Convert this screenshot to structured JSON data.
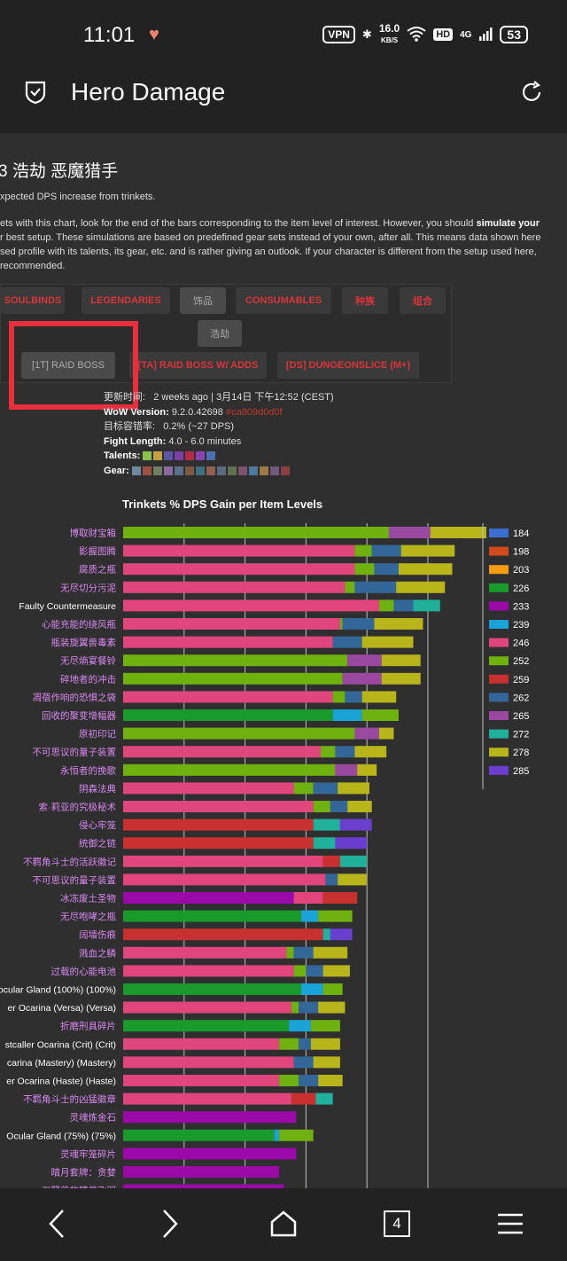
{
  "status": {
    "time": "11:01",
    "vpn": "VPN",
    "speed_value": "16.0",
    "speed_unit": "KB/S",
    "hd": "HD",
    "signal": "4G",
    "battery": "53"
  },
  "appbar": {
    "title": "Hero Damage"
  },
  "page": {
    "title": "3 浩劫 恶魔猎手",
    "subtitle": "xpected DPS increase from trinkets.",
    "para_lines": [
      {
        "pre": "ets with this chart, look for the end of the bars corresponding to the item level of interest. However, you should ",
        "bold": "simulate your"
      },
      {
        "pre": "r best setup. These simulations are based on predefined gear sets instead of your own, after all. This means data shown here",
        "bold": ""
      },
      {
        "pre": "sed profile with its talents, its gear, etc. and is rather giving an outlook. If your character is different from the setup used here,",
        "bold": ""
      },
      {
        "pre": "recommended.",
        "bold": ""
      }
    ]
  },
  "tabs": {
    "row1": [
      "SOULBINDS",
      "LEGENDARIES",
      "饰品",
      "CONSUMABLES",
      "种族",
      "组合"
    ],
    "row2": [
      "浩劫"
    ],
    "row3": [
      "[1T] RAID BOSS",
      "[TA] RAID BOSS W/ ADDS",
      "[DS] DUNGEONSLICE (M+)"
    ]
  },
  "info": {
    "updated_label": "更新时间",
    "updated_value": "2 weeks ago | 3月14日 下午12:52 (CEST)",
    "wow_label": "WoW Version:",
    "wow_value": "9.2.0.42698",
    "wow_hash": "#ca809d0d0f",
    "target_label": "目标容错率:",
    "target_value": "0.2% (~27 DPS)",
    "fight_label": "Fight Length:",
    "fight_value": "4.0 - 6.0 minutes",
    "talents_label": "Talents:",
    "gear_label": "Gear:"
  },
  "colors": {
    "il184": "#3a6fd0",
    "il198": "#d24a1e",
    "il203": "#f39c12",
    "il226": "#1a9a2a",
    "il233": "#9b0aa8",
    "il239": "#1aa3d6",
    "il246": "#e0467c",
    "il252": "#6fb10e",
    "il259": "#c93030",
    "il262": "#336699",
    "il265": "#9a49a0",
    "il272": "#21b19a",
    "il278": "#b8b51a",
    "il285": "#6a3fd0"
  },
  "chart_data": {
    "type": "bar",
    "orientation": "horizontal",
    "stacked": true,
    "title": "Trinkets % DPS Gain per Item Levels",
    "legend_position": "right",
    "legend": [
      "184",
      "198",
      "203",
      "226",
      "233",
      "239",
      "246",
      "252",
      "259",
      "262",
      "265",
      "272",
      "278",
      "285"
    ],
    "categories": [
      {
        "name": "博取财宝箱",
        "color": "#d889f0",
        "segs": [
          [
            252,
            10.9
          ],
          [
            265,
            1.7
          ],
          [
            278,
            2.3
          ]
        ]
      },
      {
        "name": "影握图腾",
        "color": "#d889f0",
        "segs": [
          [
            246,
            9.5
          ],
          [
            252,
            0.7
          ],
          [
            262,
            1.2
          ],
          [
            278,
            2.2
          ]
        ]
      },
      {
        "name": "腐质之瓶",
        "color": "#d889f0",
        "segs": [
          [
            246,
            9.5
          ],
          [
            252,
            0.8
          ],
          [
            262,
            1.0
          ],
          [
            278,
            2.2
          ]
        ]
      },
      {
        "name": "无尽切分污泥",
        "color": "#d889f0",
        "segs": [
          [
            246,
            9.1
          ],
          [
            252,
            0.4
          ],
          [
            262,
            1.7
          ],
          [
            278,
            2.0
          ]
        ]
      },
      {
        "name": "Faulty Countermeasure",
        "color": "#ffffff",
        "segs": [
          [
            246,
            10.5
          ],
          [
            252,
            0.6
          ],
          [
            262,
            0.8
          ],
          [
            272,
            1.1
          ]
        ]
      },
      {
        "name": "心能充能的绕风瓶",
        "color": "#d889f0",
        "segs": [
          [
            246,
            8.9
          ],
          [
            252,
            0.1
          ],
          [
            262,
            1.3
          ],
          [
            278,
            2.0
          ]
        ]
      },
      {
        "name": "瓶装旋翼兽毒素",
        "color": "#d889f0",
        "segs": [
          [
            246,
            8.6
          ],
          [
            262,
            1.2
          ],
          [
            278,
            2.1
          ]
        ]
      },
      {
        "name": "无尽熵宴餐铃",
        "color": "#d889f0",
        "segs": [
          [
            252,
            9.2
          ],
          [
            265,
            1.4
          ],
          [
            278,
            1.6
          ]
        ]
      },
      {
        "name": "碎地者的冲击",
        "color": "#d889f0",
        "segs": [
          [
            252,
            9.0
          ],
          [
            265,
            1.6
          ],
          [
            278,
            1.6
          ]
        ]
      },
      {
        "name": "凋蓓作响的恐惧之袋",
        "color": "#d889f0",
        "segs": [
          [
            246,
            8.6
          ],
          [
            252,
            0.5
          ],
          [
            262,
            0.7
          ],
          [
            278,
            1.4
          ]
        ]
      },
      {
        "name": "回收的聚变增幅器",
        "color": "#d889f0",
        "segs": [
          [
            226,
            8.6
          ],
          [
            239,
            1.2
          ],
          [
            252,
            1.5
          ]
        ]
      },
      {
        "name": "原初印记",
        "color": "#d889f0",
        "segs": [
          [
            252,
            9.5
          ],
          [
            265,
            1.0
          ],
          [
            278,
            0.6
          ]
        ]
      },
      {
        "name": "不可思议的量子装置",
        "color": "#d889f0",
        "segs": [
          [
            246,
            8.1
          ],
          [
            252,
            0.6
          ],
          [
            262,
            0.8
          ],
          [
            278,
            1.3
          ]
        ]
      },
      {
        "name": "永恒者的挽歌",
        "color": "#d889f0",
        "segs": [
          [
            252,
            8.7
          ],
          [
            265,
            0.9
          ],
          [
            278,
            0.8
          ]
        ]
      },
      {
        "name": "阴森法典",
        "color": "#d889f0",
        "segs": [
          [
            246,
            7.0
          ],
          [
            252,
            0.8
          ],
          [
            262,
            1.0
          ],
          [
            278,
            1.3
          ]
        ]
      },
      {
        "name": "索·莉亚的究极秘术",
        "color": "#d889f0",
        "segs": [
          [
            246,
            7.8
          ],
          [
            252,
            0.7
          ],
          [
            262,
            0.7
          ],
          [
            278,
            1.0
          ]
        ]
      },
      {
        "name": "侵心牢笼",
        "color": "#d889f0",
        "segs": [
          [
            259,
            7.8
          ],
          [
            272,
            1.1
          ],
          [
            285,
            1.3
          ]
        ]
      },
      {
        "name": "统御之链",
        "color": "#d889f0",
        "segs": [
          [
            259,
            7.8
          ],
          [
            272,
            0.9
          ],
          [
            285,
            1.3
          ]
        ]
      },
      {
        "name": "不羁角斗士的活跃徽记",
        "color": "#d889f0",
        "segs": [
          [
            246,
            8.2
          ],
          [
            259,
            0.7
          ],
          [
            272,
            1.1
          ]
        ]
      },
      {
        "name": "不可思议的量子装置",
        "color": "#d889f0",
        "segs": [
          [
            246,
            8.3
          ],
          [
            262,
            0.5
          ],
          [
            278,
            1.2
          ]
        ]
      },
      {
        "name": "冰冻废土圣物",
        "color": "#d889f0",
        "segs": [
          [
            233,
            7.0
          ],
          [
            246,
            1.2
          ],
          [
            259,
            1.4
          ]
        ]
      },
      {
        "name": "无尽咆哮之瓶",
        "color": "#d889f0",
        "segs": [
          [
            226,
            7.3
          ],
          [
            239,
            0.7
          ],
          [
            252,
            1.4
          ]
        ]
      },
      {
        "name": "阔墙伤痕",
        "color": "#d889f0",
        "segs": [
          [
            259,
            8.2
          ],
          [
            272,
            0.3
          ],
          [
            285,
            0.9
          ]
        ]
      },
      {
        "name": "溅血之鳞",
        "color": "#d889f0",
        "segs": [
          [
            246,
            6.7
          ],
          [
            252,
            0.3
          ],
          [
            262,
            0.8
          ],
          [
            278,
            1.4
          ]
        ]
      },
      {
        "name": "过载的心能电池",
        "color": "#d889f0",
        "segs": [
          [
            246,
            7.0
          ],
          [
            252,
            0.5
          ],
          [
            262,
            0.7
          ],
          [
            278,
            1.1
          ]
        ]
      },
      {
        "name": "ocular Gland (100%) (100%)",
        "color": "#ffffff",
        "segs": [
          [
            226,
            7.3
          ],
          [
            239,
            0.9
          ],
          [
            252,
            0.8
          ]
        ]
      },
      {
        "name": "er Ocarina (Versa) (Versa)",
        "color": "#ffffff",
        "segs": [
          [
            246,
            6.9
          ],
          [
            252,
            0.3
          ],
          [
            262,
            0.8
          ],
          [
            278,
            1.1
          ]
        ]
      },
      {
        "name": "折磨刑具碎片",
        "color": "#d889f0",
        "segs": [
          [
            226,
            6.8
          ],
          [
            239,
            0.9
          ],
          [
            252,
            1.2
          ]
        ]
      },
      {
        "name": "stcaller Ocarina (Crit) (Crit)",
        "color": "#ffffff",
        "segs": [
          [
            246,
            6.4
          ],
          [
            252,
            0.8
          ],
          [
            262,
            0.5
          ],
          [
            278,
            1.2
          ]
        ]
      },
      {
        "name": "carina (Mastery) (Mastery)",
        "color": "#ffffff",
        "segs": [
          [
            246,
            7.0
          ],
          [
            262,
            0.8
          ],
          [
            278,
            1.1
          ]
        ]
      },
      {
        "name": "er Ocarina (Haste) (Haste)",
        "color": "#ffffff",
        "segs": [
          [
            246,
            6.4
          ],
          [
            252,
            0.8
          ],
          [
            262,
            0.8
          ],
          [
            278,
            1.0
          ]
        ]
      },
      {
        "name": "不羁角斗士的凶猛徽章",
        "color": "#d889f0",
        "segs": [
          [
            246,
            6.9
          ],
          [
            259,
            1.0
          ],
          [
            272,
            0.7
          ]
        ]
      },
      {
        "name": "灵魂炼金石",
        "color": "#d889f0",
        "segs": [
          [
            233,
            7.1
          ]
        ]
      },
      {
        "name": "Ocular Gland (75%) (75%)",
        "color": "#ffffff",
        "segs": [
          [
            226,
            6.2
          ],
          [
            239,
            0.2
          ],
          [
            252,
            1.4
          ]
        ]
      },
      {
        "name": "灵魂牢笼碎片",
        "color": "#d889f0",
        "segs": [
          [
            233,
            7.1
          ]
        ]
      },
      {
        "name": "暗月套牌：贪婪",
        "color": "#d889f0",
        "segs": [
          [
            233,
            6.4
          ]
        ]
      },
      {
        "name": "刀翼兽的精美飞羽",
        "color": "#d889f0",
        "segs": [
          [
            233,
            6.6
          ]
        ]
      }
    ],
    "x_units": "% DPS gain",
    "x_max": 14.5,
    "grid": true
  }
}
